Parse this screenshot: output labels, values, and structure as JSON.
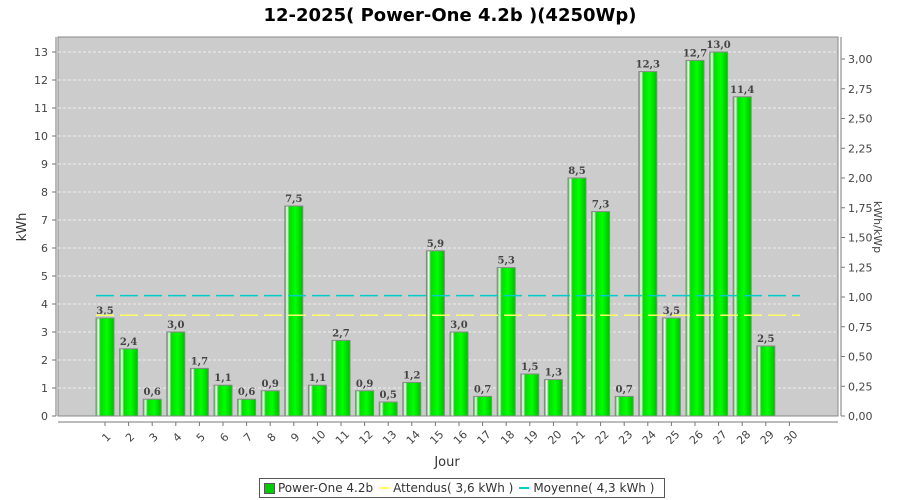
{
  "chart_data": {
    "type": "bar",
    "title": "12-2025( Power-One 4.2b )(4250Wp)",
    "xlabel": "Jour",
    "ylabel": "kWh",
    "ylabel_right": "kWh/kWp",
    "ylim": [
      0,
      13.5
    ],
    "ylim_right": [
      0,
      3.18
    ],
    "yticks": [
      0,
      1,
      2,
      3,
      4,
      5,
      6,
      7,
      8,
      9,
      10,
      11,
      12,
      13
    ],
    "yticks_right": [
      "0,00",
      "0,25",
      "0,50",
      "0,75",
      "1,00",
      "1,25",
      "1,50",
      "1,75",
      "2,00",
      "2,25",
      "2,50",
      "2,75",
      "3,00"
    ],
    "grid": true,
    "legend_placement": "bottom",
    "categories": [
      "1",
      "2",
      "3",
      "4",
      "5",
      "6",
      "7",
      "8",
      "9",
      "10",
      "11",
      "12",
      "13",
      "14",
      "15",
      "16",
      "17",
      "18",
      "19",
      "20",
      "21",
      "22",
      "23",
      "24",
      "25",
      "26",
      "27",
      "28",
      "29",
      "30"
    ],
    "series": [
      {
        "name": "Power-One 4.2b",
        "type": "bar",
        "color": "#00dd00",
        "values": [
          3.5,
          2.4,
          0.6,
          3.0,
          1.7,
          1.1,
          0.6,
          0.9,
          7.5,
          1.1,
          2.7,
          0.9,
          0.5,
          1.2,
          5.9,
          3.0,
          0.7,
          5.3,
          1.5,
          1.3,
          8.5,
          7.3,
          0.7,
          12.3,
          3.5,
          12.7,
          13.0,
          11.4,
          2.5,
          null
        ],
        "labels": [
          "3,5",
          "2,4",
          "0,6",
          "3,0",
          "1,7",
          "1,1",
          "0,6",
          "0,9",
          "7,5",
          "1,1",
          "2,7",
          "0,9",
          "0,5",
          "1,2",
          "5,9",
          "3,0",
          "0,7",
          "5,3",
          "1,5",
          "1,3",
          "8,5",
          "7,3",
          "0,7",
          "12,3",
          "3,5",
          "12,7",
          "13,0",
          "11,4",
          "2,5",
          ""
        ]
      },
      {
        "name": "Attendus( 3,6 kWh )",
        "type": "line",
        "color": "#ffff66",
        "value": 3.6
      },
      {
        "name": "Moyenne( 4,3 kWh )",
        "type": "line",
        "color": "#00cccc",
        "value": 4.3
      }
    ]
  }
}
